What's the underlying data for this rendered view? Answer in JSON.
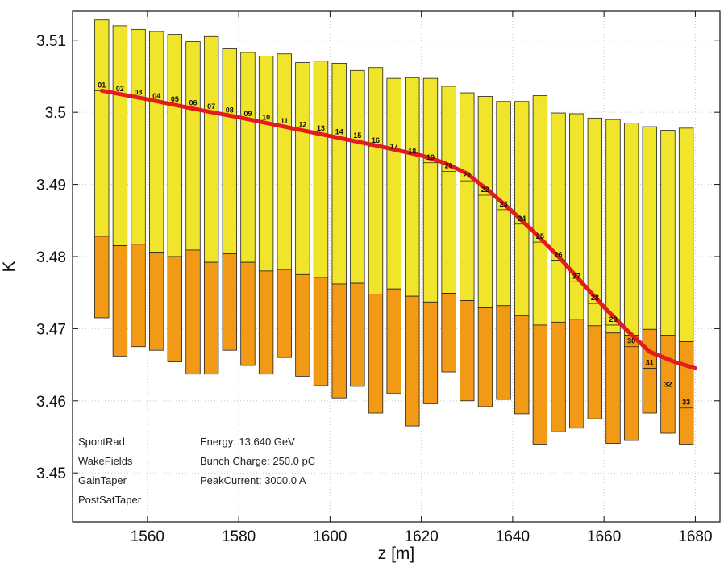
{
  "chart_data": {
    "type": "bar",
    "xlabel": "z [m]",
    "ylabel": "K",
    "xlim": [
      1543.6,
      1685.4
    ],
    "ylim": [
      3.4432,
      3.514
    ],
    "xticks": [
      "1560",
      "1580",
      "1600",
      "1620",
      "1640",
      "1660",
      "1680"
    ],
    "yticks": [
      "3.45",
      "3.46",
      "3.47",
      "3.48",
      "3.49",
      "3.5",
      "3.51"
    ],
    "grid": true,
    "colors": {
      "yellow": "#f0e52a",
      "orange": "#f29a16",
      "line": "#e41b1b"
    },
    "segments": [
      {
        "label": "01",
        "z": 1550.0,
        "ytop": 3.5128,
        "ymid": 3.4828,
        "ybot": 3.4715,
        "k": 3.503
      },
      {
        "label": "02",
        "z": 1554.0,
        "ytop": 3.512,
        "ymid": 3.4815,
        "ybot": 3.4662,
        "k": 3.5025
      },
      {
        "label": "03",
        "z": 1558.0,
        "ytop": 3.5115,
        "ymid": 3.4817,
        "ybot": 3.4675,
        "k": 3.502
      },
      {
        "label": "04",
        "z": 1562.0,
        "ytop": 3.5112,
        "ymid": 3.4806,
        "ybot": 3.467,
        "k": 3.5015
      },
      {
        "label": "05",
        "z": 1566.0,
        "ytop": 3.5108,
        "ymid": 3.48,
        "ybot": 3.4654,
        "k": 3.501
      },
      {
        "label": "06",
        "z": 1570.0,
        "ytop": 3.5098,
        "ymid": 3.4809,
        "ybot": 3.4637,
        "k": 3.5005
      },
      {
        "label": "07",
        "z": 1574.0,
        "ytop": 3.5105,
        "ymid": 3.4792,
        "ybot": 3.4637,
        "k": 3.5
      },
      {
        "label": "08",
        "z": 1578.0,
        "ytop": 3.5088,
        "ymid": 3.4804,
        "ybot": 3.467,
        "k": 3.4995
      },
      {
        "label": "09",
        "z": 1582.0,
        "ytop": 3.5083,
        "ymid": 3.4792,
        "ybot": 3.4649,
        "k": 3.499
      },
      {
        "label": "10",
        "z": 1586.0,
        "ytop": 3.5078,
        "ymid": 3.478,
        "ybot": 3.4637,
        "k": 3.4985
      },
      {
        "label": "11",
        "z": 1590.0,
        "ytop": 3.5081,
        "ymid": 3.4782,
        "ybot": 3.466,
        "k": 3.498
      },
      {
        "label": "12",
        "z": 1594.0,
        "ytop": 3.5069,
        "ymid": 3.4775,
        "ybot": 3.4634,
        "k": 3.4975
      },
      {
        "label": "13",
        "z": 1598.0,
        "ytop": 3.5071,
        "ymid": 3.4771,
        "ybot": 3.4621,
        "k": 3.497
      },
      {
        "label": "14",
        "z": 1602.0,
        "ytop": 3.5068,
        "ymid": 3.4762,
        "ybot": 3.4604,
        "k": 3.4965
      },
      {
        "label": "15",
        "z": 1606.0,
        "ytop": 3.5058,
        "ymid": 3.4763,
        "ybot": 3.462,
        "k": 3.496
      },
      {
        "label": "16",
        "z": 1610.0,
        "ytop": 3.5062,
        "ymid": 3.4748,
        "ybot": 3.4583,
        "k": 3.4953
      },
      {
        "label": "17",
        "z": 1614.0,
        "ytop": 3.5047,
        "ymid": 3.4755,
        "ybot": 3.461,
        "k": 3.4945
      },
      {
        "label": "18",
        "z": 1618.0,
        "ytop": 3.5048,
        "ymid": 3.4745,
        "ybot": 3.4565,
        "k": 3.4938
      },
      {
        "label": "19",
        "z": 1622.0,
        "ytop": 3.5047,
        "ymid": 3.4737,
        "ybot": 3.4596,
        "k": 3.493
      },
      {
        "label": "20",
        "z": 1626.0,
        "ytop": 3.5036,
        "ymid": 3.4749,
        "ybot": 3.464,
        "k": 3.4918
      },
      {
        "label": "21",
        "z": 1630.0,
        "ytop": 3.5027,
        "ymid": 3.4739,
        "ybot": 3.46,
        "k": 3.4905
      },
      {
        "label": "22",
        "z": 1634.0,
        "ytop": 3.5022,
        "ymid": 3.4729,
        "ybot": 3.4592,
        "k": 3.4885
      },
      {
        "label": "23",
        "z": 1638.0,
        "ytop": 3.5015,
        "ymid": 3.4732,
        "ybot": 3.4602,
        "k": 3.4865
      },
      {
        "label": "24",
        "z": 1642.0,
        "ytop": 3.5015,
        "ymid": 3.4718,
        "ybot": 3.4582,
        "k": 3.4845
      },
      {
        "label": "25",
        "z": 1646.0,
        "ytop": 3.5023,
        "ymid": 3.4705,
        "ybot": 3.454,
        "k": 3.482
      },
      {
        "label": "26",
        "z": 1650.0,
        "ytop": 3.4999,
        "ymid": 3.4709,
        "ybot": 3.4557,
        "k": 3.4795
      },
      {
        "label": "27",
        "z": 1654.0,
        "ytop": 3.4998,
        "ymid": 3.4713,
        "ybot": 3.4562,
        "k": 3.4765
      },
      {
        "label": "28",
        "z": 1658.0,
        "ytop": 3.4992,
        "ymid": 3.4704,
        "ybot": 3.4575,
        "k": 3.4735
      },
      {
        "label": "29",
        "z": 1662.0,
        "ytop": 3.499,
        "ymid": 3.4694,
        "ybot": 3.4541,
        "k": 3.4705
      },
      {
        "label": "30",
        "z": 1666.0,
        "ytop": 3.4985,
        "ymid": 3.4691,
        "ybot": 3.4545,
        "k": 3.4675
      },
      {
        "label": "31",
        "z": 1670.0,
        "ytop": 3.498,
        "ymid": 3.4699,
        "ybot": 3.4583,
        "k": 3.4645
      },
      {
        "label": "32",
        "z": 1674.0,
        "ytop": 3.4975,
        "ymid": 3.4691,
        "ybot": 3.4555,
        "k": 3.4615
      },
      {
        "label": "33",
        "z": 1678.0,
        "ytop": 3.4978,
        "ymid": 3.4682,
        "ybot": 3.454,
        "k": 3.459
      }
    ],
    "k_line": {
      "z": [
        1550,
        1560,
        1570,
        1580,
        1590,
        1600,
        1610,
        1620,
        1625,
        1630,
        1635,
        1640,
        1645,
        1650,
        1655,
        1660,
        1665,
        1670,
        1675,
        1680
      ],
      "k": [
        3.503,
        3.5018,
        3.5005,
        3.4993,
        3.498,
        3.4967,
        3.4954,
        3.494,
        3.493,
        3.4915,
        3.489,
        3.4862,
        3.4832,
        3.48,
        3.4765,
        3.473,
        3.4698,
        3.4668,
        3.4655,
        3.4645
      ]
    },
    "annotations": {
      "left": [
        "SpontRad",
        "WakeFields",
        "GainTaper",
        "PostSatTaper"
      ],
      "right": [
        "Energy: 13.640 GeV",
        "Bunch Charge: 250.0 pC",
        "PeakCurrent: 3000.0 A"
      ]
    }
  }
}
